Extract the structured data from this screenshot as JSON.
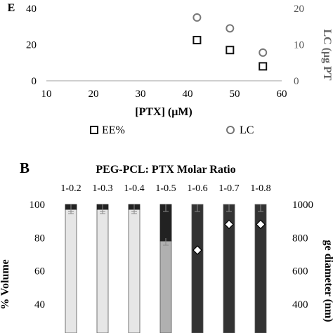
{
  "chart_data": [
    {
      "type": "scatter",
      "panel_label": "",
      "xlabel": "[PTX] (μM)",
      "ylabel_left": "E",
      "ylabel_right": "LC (μg PT",
      "xlim": [
        10,
        60
      ],
      "x_ticks": [
        "10",
        "20",
        "30",
        "40",
        "50",
        "60"
      ],
      "ylim_left": [
        0,
        40
      ],
      "y_ticks_left": [
        "0",
        "20",
        "40"
      ],
      "ylim_right": [
        0,
        20
      ],
      "y_ticks_right": [
        "0",
        "10",
        "20"
      ],
      "colors": {
        "ee": "#111111",
        "lc": "#777777"
      },
      "series": [
        {
          "name": "EE%",
          "axis": "left",
          "marker": "square",
          "points": [
            {
              "x": 42,
              "y": 22.5
            },
            {
              "x": 49,
              "y": 17
            },
            {
              "x": 56,
              "y": 8
            }
          ]
        },
        {
          "name": "LC",
          "axis": "right",
          "marker": "circle",
          "points": [
            {
              "x": 42,
              "y": 17.5
            },
            {
              "x": 49,
              "y": 14.5
            },
            {
              "x": 56,
              "y": 7.8
            }
          ]
        }
      ],
      "legend": [
        "EE%",
        "LC"
      ]
    },
    {
      "type": "bar",
      "panel_label": "B",
      "title": "PEG-PCL: PTX Molar Ratio",
      "categories": [
        "1-0.2",
        "1-0.3",
        "1-0.4",
        "1-0.5",
        "1-0.6",
        "1-0.7",
        "1-0.8"
      ],
      "ylabel_left": "% Volume",
      "ylabel_right": "ge diameter (nm)",
      "ylim_left": [
        40,
        100
      ],
      "y_ticks_left": [
        "40",
        "60",
        "80",
        "100"
      ],
      "ylim_right": [
        400,
        1000
      ],
      "y_ticks_right": [
        "400",
        "600",
        "800",
        "1000"
      ],
      "colors": {
        "light": "#e6e6e6",
        "mid": "#b0b0b0",
        "dark": "#333333",
        "top": "#222222",
        "err": "#8a8a8a"
      },
      "bars": [
        {
          "category": "1-0.2",
          "lower": 97,
          "lower_color": "light",
          "diameter": null
        },
        {
          "category": "1-0.3",
          "lower": 97,
          "lower_color": "light",
          "diameter": null
        },
        {
          "category": "1-0.4",
          "lower": 97,
          "lower_color": "light",
          "diameter": null
        },
        {
          "category": "1-0.5",
          "lower": 78,
          "lower_color": "mid",
          "diameter": null
        },
        {
          "category": "1-0.6",
          "lower": 100,
          "lower_color": "dark",
          "diameter": 725
        },
        {
          "category": "1-0.7",
          "lower": 100,
          "lower_color": "dark",
          "diameter": 880
        },
        {
          "category": "1-0.8",
          "lower": 100,
          "lower_color": "dark",
          "diameter": 880
        }
      ]
    }
  ]
}
